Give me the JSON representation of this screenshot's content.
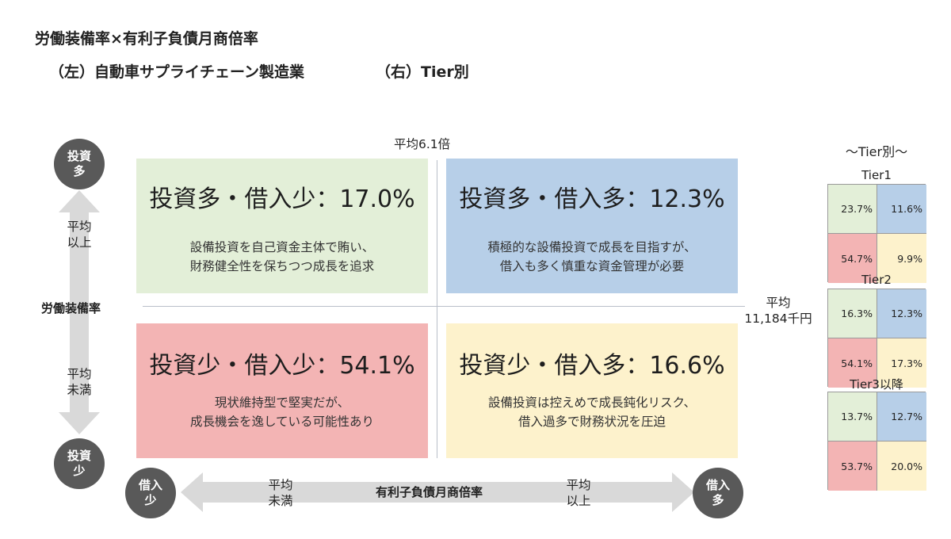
{
  "title": "労働装備率×有利子負債月商倍率",
  "subtitle_left": "（左）自動車サプライチェーン製造業",
  "subtitle_right": "（右）Tier別",
  "colors": {
    "green": "#e3efd8",
    "blue": "#b7cfe8",
    "red": "#f3b4b4",
    "yellow": "#fdf2cc",
    "circle": "#595959",
    "arrow": "#d9d9d9",
    "line": "#b9bfc9"
  },
  "quadrants": {
    "top_left": {
      "heading": "投資多・借入少：17.0%",
      "desc_line1": "設備投資を自己資金主体で賄い、",
      "desc_line2": "財務健全性を保ちつつ成長を追求"
    },
    "top_right": {
      "heading": "投資多・借入多：12.3%",
      "desc_line1": "積極的な設備投資で成長を目指すが、",
      "desc_line2": "借入も多く慎重な資金管理が必要"
    },
    "bottom_left": {
      "heading": "投資少・借入少：54.1%",
      "desc_line1": "現状維持型で堅実だが、",
      "desc_line2": "成長機会を逸している可能性あり"
    },
    "bottom_right": {
      "heading": "投資少・借入多：16.6%",
      "desc_line1": "設備投資は控えめで成長鈍化リスク、",
      "desc_line2": "借入過多で財務状況を圧迫"
    }
  },
  "averages": {
    "x_avg": "平均6.1倍",
    "y_avg_line1": "平均",
    "y_avg_line2": "11,184千円"
  },
  "y_axis": {
    "top_circle": {
      "line1": "投資",
      "line2": "多"
    },
    "bottom_circle": {
      "line1": "投資",
      "line2": "少"
    },
    "above_line1": "平均",
    "above_line2": "以上",
    "label": "労働装備率",
    "below_line1": "平均",
    "below_line2": "未満"
  },
  "x_axis": {
    "left_circle": {
      "line1": "借入",
      "line2": "少"
    },
    "right_circle": {
      "line1": "借入",
      "line2": "多"
    },
    "left_line1": "平均",
    "left_line2": "未満",
    "label": "有利子負債月商倍率",
    "right_line1": "平均",
    "right_line2": "以上"
  },
  "tiers": {
    "heading": "～Tier別～",
    "tier1": {
      "name": "Tier1",
      "top_left": "23.7%",
      "top_right": "11.6%",
      "bottom_left": "54.7%",
      "bottom_right": "9.9%"
    },
    "tier2": {
      "name": "Tier2",
      "top_left": "16.3%",
      "top_right": "12.3%",
      "bottom_left": "54.1%",
      "bottom_right": "17.3%"
    },
    "tier3": {
      "name": "Tier3以降",
      "top_left": "13.7%",
      "top_right": "12.7%",
      "bottom_left": "53.7%",
      "bottom_right": "20.0%"
    }
  }
}
